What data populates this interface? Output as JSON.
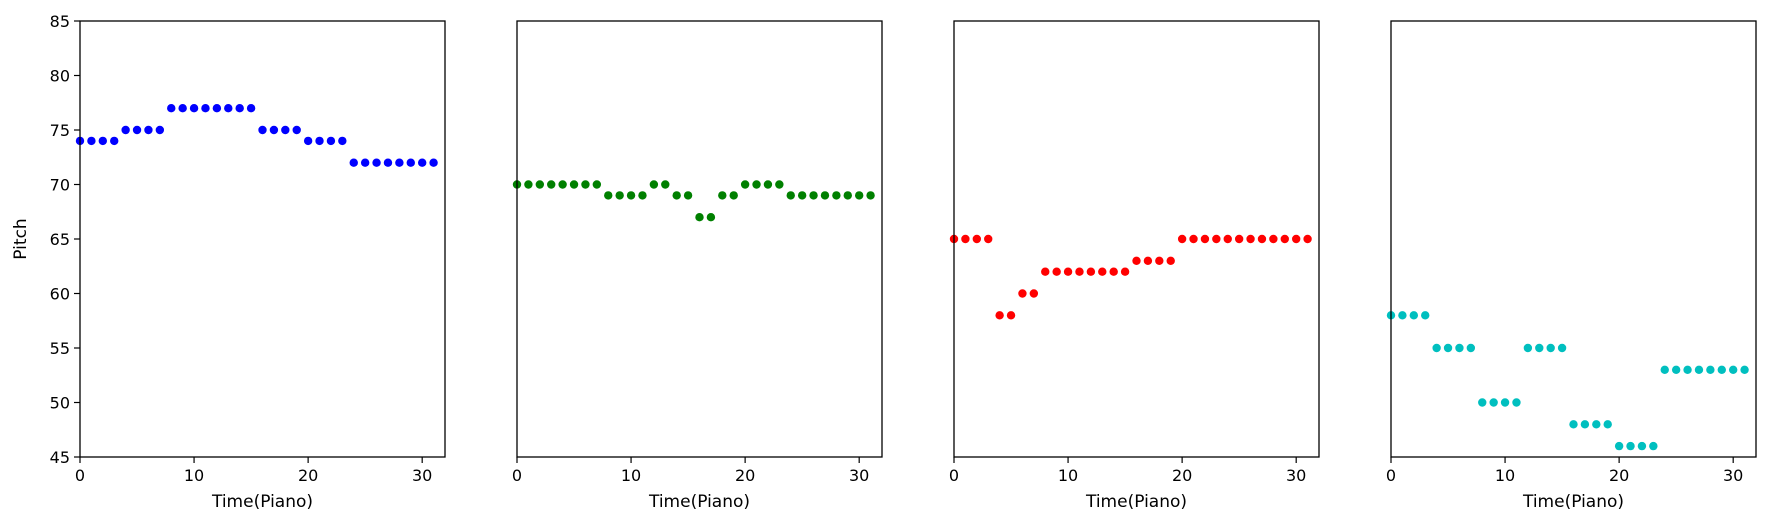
{
  "chart_data": [
    {
      "type": "scatter",
      "xlabel": "Time(Piano)",
      "ylabel": "Pitch",
      "xlim": [
        0,
        32
      ],
      "ylim": [
        45,
        85
      ],
      "x_ticks": [
        0,
        10,
        20,
        30
      ],
      "y_ticks": [
        45,
        50,
        55,
        60,
        65,
        70,
        75,
        80,
        85
      ],
      "show_y_ticks": true,
      "color": "#0000ff",
      "x": [
        0,
        1,
        2,
        3,
        4,
        5,
        6,
        7,
        8,
        9,
        10,
        11,
        12,
        13,
        14,
        15,
        16,
        17,
        18,
        19,
        20,
        21,
        22,
        23,
        24,
        25,
        26,
        27,
        28,
        29,
        30,
        31
      ],
      "y": [
        74,
        74,
        74,
        74,
        75,
        75,
        75,
        75,
        77,
        77,
        77,
        77,
        77,
        77,
        77,
        77,
        75,
        75,
        75,
        75,
        74,
        74,
        74,
        74,
        72,
        72,
        72,
        72,
        72,
        72,
        72,
        72
      ]
    },
    {
      "type": "scatter",
      "xlabel": "Time(Piano)",
      "ylabel": "",
      "xlim": [
        0,
        32
      ],
      "ylim": [
        45,
        85
      ],
      "x_ticks": [
        0,
        10,
        20,
        30
      ],
      "y_ticks": [],
      "show_y_ticks": false,
      "color": "#008000",
      "x": [
        0,
        1,
        2,
        3,
        4,
        5,
        6,
        7,
        8,
        9,
        10,
        11,
        12,
        13,
        14,
        15,
        16,
        17,
        18,
        19,
        20,
        21,
        22,
        23,
        24,
        25,
        26,
        27,
        28,
        29,
        30,
        31
      ],
      "y": [
        70,
        70,
        70,
        70,
        70,
        70,
        70,
        70,
        69,
        69,
        69,
        69,
        70,
        70,
        69,
        69,
        67,
        67,
        69,
        69,
        70,
        70,
        70,
        70,
        69,
        69,
        69,
        69,
        69,
        69,
        69,
        69
      ]
    },
    {
      "type": "scatter",
      "xlabel": "Time(Piano)",
      "ylabel": "",
      "xlim": [
        0,
        32
      ],
      "ylim": [
        45,
        85
      ],
      "x_ticks": [
        0,
        10,
        20,
        30
      ],
      "y_ticks": [],
      "show_y_ticks": false,
      "color": "#ff0000",
      "x": [
        0,
        1,
        2,
        3,
        4,
        5,
        6,
        7,
        8,
        9,
        10,
        11,
        12,
        13,
        14,
        15,
        16,
        17,
        18,
        19,
        20,
        21,
        22,
        23,
        24,
        25,
        26,
        27,
        28,
        29,
        30,
        31
      ],
      "y": [
        65,
        65,
        65,
        65,
        58,
        58,
        60,
        60,
        62,
        62,
        62,
        62,
        62,
        62,
        62,
        62,
        63,
        63,
        63,
        63,
        65,
        65,
        65,
        65,
        65,
        65,
        65,
        65,
        65,
        65,
        65,
        65
      ]
    },
    {
      "type": "scatter",
      "xlabel": "Time(Piano)",
      "ylabel": "",
      "xlim": [
        0,
        32
      ],
      "ylim": [
        45,
        85
      ],
      "x_ticks": [
        0,
        10,
        20,
        30
      ],
      "y_ticks": [],
      "show_y_ticks": false,
      "color": "#00bfbf",
      "x": [
        0,
        1,
        2,
        3,
        4,
        5,
        6,
        7,
        8,
        9,
        10,
        11,
        12,
        13,
        14,
        15,
        16,
        17,
        18,
        19,
        20,
        21,
        22,
        23,
        24,
        25,
        26,
        27,
        28,
        29,
        30,
        31
      ],
      "y": [
        58,
        58,
        58,
        58,
        55,
        55,
        55,
        55,
        50,
        50,
        50,
        50,
        55,
        55,
        55,
        55,
        48,
        48,
        48,
        48,
        46,
        46,
        46,
        46,
        53,
        53,
        53,
        53,
        53,
        53,
        53,
        53
      ]
    }
  ]
}
